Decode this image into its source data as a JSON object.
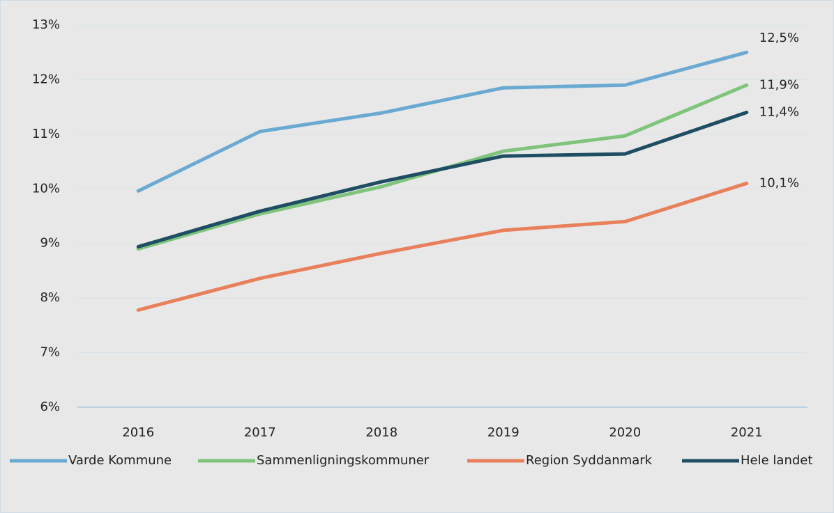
{
  "chart_data": {
    "type": "line",
    "categories": [
      "2016",
      "2017",
      "2018",
      "2019",
      "2020",
      "2021"
    ],
    "series": [
      {
        "name": "Varde Kommune",
        "color": "#6aaad2",
        "values": [
          9.96,
          11.05,
          11.39,
          11.85,
          11.9,
          12.5
        ],
        "value_labels": [
          null,
          null,
          null,
          null,
          null,
          "12,5%"
        ]
      },
      {
        "name": "Sammenligningskommuner",
        "color": "#7ec47b",
        "values": [
          8.9,
          9.54,
          10.04,
          10.69,
          10.97,
          11.9
        ],
        "value_labels": [
          null,
          null,
          null,
          null,
          null,
          "11,9%"
        ]
      },
      {
        "name": "Region Syddanmark",
        "color": "#e8805c",
        "values": [
          7.78,
          8.36,
          8.82,
          9.24,
          9.4,
          10.1
        ],
        "value_labels": [
          null,
          null,
          null,
          null,
          null,
          "10,1%"
        ]
      },
      {
        "name": "Hele landet",
        "color": "#1f4d63",
        "values": [
          8.94,
          9.59,
          10.13,
          10.6,
          10.64,
          11.4
        ],
        "value_labels": [
          null,
          null,
          null,
          null,
          null,
          "11,4%"
        ]
      }
    ],
    "ylim": [
      6,
      13
    ],
    "yticks": [
      {
        "value": 6,
        "label": "6%"
      },
      {
        "value": 7,
        "label": "7%"
      },
      {
        "value": 8,
        "label": "8%"
      },
      {
        "value": 9,
        "label": "9%"
      },
      {
        "value": 10,
        "label": "10%"
      },
      {
        "value": 11,
        "label": "11%"
      },
      {
        "value": 12,
        "label": "12%"
      },
      {
        "value": 13,
        "label": "13%"
      }
    ],
    "grid": true,
    "legend": "bottom"
  }
}
